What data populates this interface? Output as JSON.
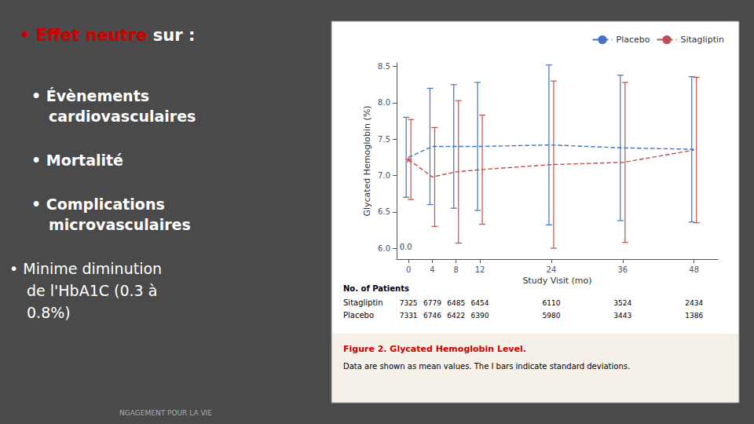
{
  "bg_color": "#4a4a4a",
  "slide_title_parts": [
    {
      "text": "• Effet neutre",
      "color": "#cc0000",
      "bold": true
    },
    {
      "text": " sur :",
      "color": "#ffffff",
      "bold": true
    }
  ],
  "bullets": [
    {
      "text": "• Évènements\ncardiovasculaires",
      "bold": true,
      "color": "#ffffff"
    },
    {
      "text": "• Mortalité",
      "bold": true,
      "color": "#ffffff"
    },
    {
      "text": "• Complications\nmicrovasculaires",
      "bold": true,
      "color": "#ffffff"
    },
    {
      "text": "• Minime diminution\nde l'HbA1C (0.3 à\n0.8%)",
      "bold": false,
      "color": "#ffffff"
    }
  ],
  "footer_text": "NGAGEMENT POUR LA VIE",
  "footer_color": "#aaaaaa",
  "chart_data": {
    "type": "line",
    "xlabel": "Study Visit (mo)",
    "ylabel": "Glycated Hemoglobin (%)",
    "x": [
      0,
      4,
      8,
      12,
      24,
      36,
      48
    ],
    "series": [
      {
        "name": "Placebo",
        "color": "#4472c4",
        "line_style": "dashed",
        "values": [
          7.25,
          7.4,
          7.4,
          7.4,
          7.42,
          7.38,
          7.36
        ],
        "error": [
          0.55,
          0.8,
          0.85,
          0.88,
          1.1,
          1.0,
          1.0
        ]
      },
      {
        "name": "Sitagliptin",
        "color": "#c0504d",
        "line_style": "dashed",
        "values": [
          7.22,
          6.98,
          7.05,
          7.08,
          7.15,
          7.18,
          7.35
        ],
        "error": [
          0.55,
          0.68,
          0.98,
          0.75,
          1.15,
          1.1,
          1.0
        ],
        "points": [
          {
            "x": 0,
            "y": 7.22,
            "marker": "star"
          }
        ]
      }
    ],
    "xlim": [
      -2,
      52
    ],
    "xticks": [
      0,
      4,
      8,
      12,
      24,
      36,
      48
    ],
    "ylim": [
      5.85,
      8.55
    ],
    "yticks": [
      {
        "value": 6.0,
        "label": "6.0"
      },
      6.5,
      {
        "value": 7.0,
        "label": "7.0"
      },
      7.5,
      {
        "value": 8.0,
        "label": "8.0"
      },
      8.5
    ],
    "grid": false,
    "legend": "upper right",
    "annotations": [
      {
        "text": "0.0",
        "x": -1.5,
        "y": 6.02
      }
    ],
    "chart_bg": "#ffffff"
  },
  "patient_table": {
    "title": "No. of Patients",
    "rows": [
      {
        "name": "Sitagliptin",
        "values": [
          7325,
          6779,
          6485,
          6454,
          6110,
          3524,
          2434
        ]
      },
      {
        "name": "Placebo",
        "values": [
          7331,
          6746,
          6422,
          6390,
          5980,
          3443,
          1386
        ]
      }
    ]
  },
  "caption": {
    "label": "Figure 2. Glycated Hemoglobin Level.",
    "label_color": "#cc0000",
    "text": "Data are shown as mean values. The I bars indicate standard deviations.",
    "bg_color": "#f5f0e8"
  }
}
